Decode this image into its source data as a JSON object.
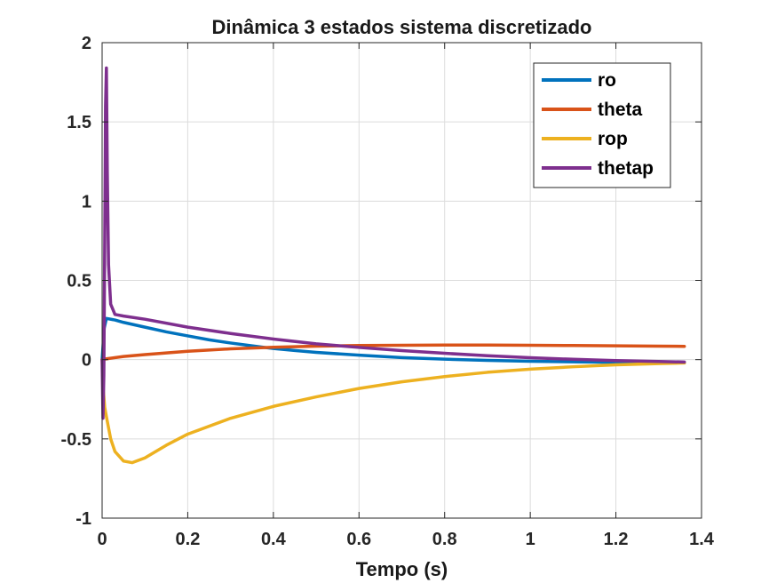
{
  "chart_data": {
    "type": "line",
    "title": "Dinâmica 3 estados sistema discretizado",
    "xlabel": "Tempo (s)",
    "ylabel": "",
    "xlim": [
      0,
      1.4
    ],
    "ylim": [
      -1,
      2
    ],
    "xticks": [
      0,
      0.2,
      0.4,
      0.6,
      0.8,
      1,
      1.2,
      1.4
    ],
    "xtick_labels": [
      "0",
      "0.2",
      "0.4",
      "0.6",
      "0.8",
      "1",
      "1.2",
      "1.4"
    ],
    "yticks": [
      -1,
      -0.5,
      0,
      0.5,
      1,
      1.5,
      2
    ],
    "ytick_labels": [
      "-1",
      "-0.5",
      "0",
      "0.5",
      "1",
      "1.5",
      "2"
    ],
    "grid": true,
    "legend_position": "top-right",
    "series": [
      {
        "name": "ro",
        "color": "#0072BD",
        "x": [
          0,
          0.002,
          0.005,
          0.01,
          0.03,
          0.05,
          0.1,
          0.15,
          0.2,
          0.25,
          0.3,
          0.35,
          0.4,
          0.45,
          0.5,
          0.6,
          0.7,
          0.8,
          0.9,
          1.0,
          1.1,
          1.2,
          1.3,
          1.36
        ],
        "y": [
          0,
          0.08,
          0.2,
          0.26,
          0.25,
          0.235,
          0.205,
          0.175,
          0.15,
          0.125,
          0.105,
          0.087,
          0.07,
          0.058,
          0.046,
          0.028,
          0.013,
          0.003,
          -0.005,
          -0.01,
          -0.014,
          -0.017,
          -0.018,
          -0.019
        ]
      },
      {
        "name": "theta",
        "color": "#D95319",
        "x": [
          0,
          0.01,
          0.05,
          0.1,
          0.2,
          0.3,
          0.4,
          0.5,
          0.6,
          0.7,
          0.8,
          0.9,
          1.0,
          1.1,
          1.2,
          1.3,
          1.36
        ],
        "y": [
          0,
          0.005,
          0.02,
          0.032,
          0.053,
          0.068,
          0.078,
          0.085,
          0.089,
          0.091,
          0.092,
          0.092,
          0.091,
          0.089,
          0.087,
          0.085,
          0.084
        ]
      },
      {
        "name": "rop",
        "color": "#EDB120",
        "x": [
          0,
          0.003,
          0.006,
          0.01,
          0.02,
          0.03,
          0.05,
          0.07,
          0.1,
          0.15,
          0.2,
          0.3,
          0.4,
          0.5,
          0.6,
          0.7,
          0.8,
          0.9,
          1.0,
          1.1,
          1.2,
          1.3,
          1.36
        ],
        "y": [
          0,
          -0.2,
          -0.3,
          -0.36,
          -0.5,
          -0.58,
          -0.64,
          -0.65,
          -0.62,
          -0.54,
          -0.47,
          -0.37,
          -0.295,
          -0.235,
          -0.182,
          -0.14,
          -0.107,
          -0.08,
          -0.06,
          -0.045,
          -0.033,
          -0.025,
          -0.021
        ]
      },
      {
        "name": "thetap",
        "color": "#7E2F8E",
        "x": [
          0,
          0.002,
          0.004,
          0.006,
          0.008,
          0.01,
          0.012,
          0.015,
          0.02,
          0.03,
          0.05,
          0.1,
          0.2,
          0.3,
          0.4,
          0.5,
          0.6,
          0.7,
          0.8,
          0.9,
          1.0,
          1.1,
          1.2,
          1.3,
          1.36
        ],
        "y": [
          0,
          -0.37,
          -0.1,
          0.7,
          1.6,
          1.84,
          1.2,
          0.6,
          0.35,
          0.285,
          0.275,
          0.255,
          0.205,
          0.165,
          0.13,
          0.1,
          0.077,
          0.057,
          0.04,
          0.025,
          0.012,
          0.002,
          -0.006,
          -0.012,
          -0.015
        ]
      }
    ]
  }
}
